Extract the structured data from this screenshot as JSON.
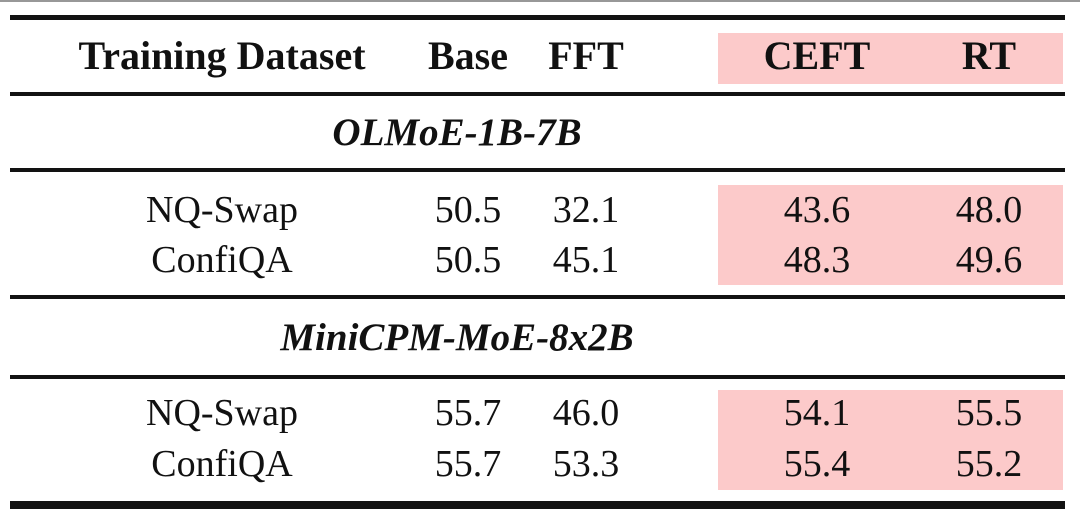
{
  "table": {
    "columns": [
      "Training Dataset",
      "Base",
      "FFT",
      "CEFT",
      "RT"
    ],
    "highlighted_columns": [
      "CEFT",
      "RT"
    ],
    "highlight_color": "#fccaca",
    "rule_color": "#121212",
    "sections": [
      {
        "title": "OLMoE-1B-7B",
        "rows": [
          {
            "cells": [
              "NQ-Swap",
              "50.5",
              "32.1",
              "43.6",
              "48.0"
            ]
          },
          {
            "cells": [
              "ConfiQA",
              "50.5",
              "45.1",
              "48.3",
              "49.6"
            ]
          }
        ]
      },
      {
        "title": "MiniCPM-MoE-8x2B",
        "rows": [
          {
            "cells": [
              "NQ-Swap",
              "55.7",
              "46.0",
              "54.1",
              "55.5"
            ]
          },
          {
            "cells": [
              "ConfiQA",
              "55.7",
              "53.3",
              "55.4",
              "55.2"
            ]
          }
        ]
      }
    ]
  }
}
